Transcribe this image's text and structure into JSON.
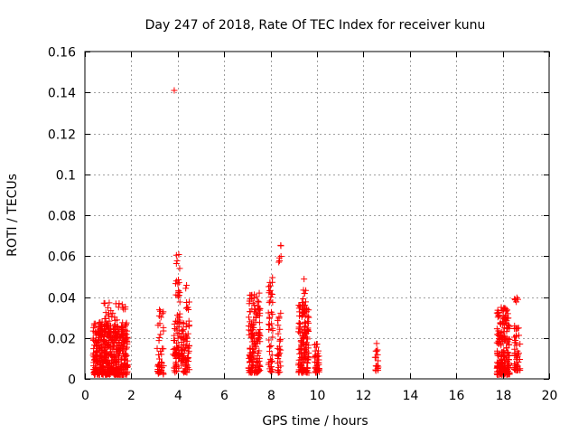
{
  "chart_data": {
    "type": "scatter",
    "title": "Day 247 of 2018, Rate Of TEC Index for receiver kunu",
    "xlabel": "GPS time / hours",
    "ylabel": "ROTI / TECUs",
    "xlim": [
      0,
      20
    ],
    "ylim": [
      0,
      0.16
    ],
    "grid": true,
    "marker": "+",
    "color": "#ff0000",
    "x_ticks": [
      0,
      2,
      4,
      6,
      8,
      10,
      12,
      14,
      16,
      18,
      20
    ],
    "x_tick_labels": [
      "0",
      "2",
      "4",
      "6",
      "8",
      "10",
      "12",
      "14",
      "16",
      "18",
      "20"
    ],
    "y_ticks": [
      0,
      0.02,
      0.04,
      0.06,
      0.08,
      0.1,
      0.12,
      0.14,
      0.16
    ],
    "y_tick_labels": [
      "0",
      "0.02",
      "0.04",
      "0.06",
      "0.08",
      "0.1",
      "0.12",
      "0.14",
      "0.16"
    ],
    "clusters": [
      {
        "x_range": [
          0.35,
          1.85
        ],
        "y_range": [
          0.002,
          0.027
        ],
        "count": 460
      },
      {
        "x_range": [
          0.6,
          1.8
        ],
        "y_range": [
          0.02,
          0.038
        ],
        "count": 70
      },
      {
        "x_range": [
          3.1,
          3.4
        ],
        "y_range": [
          0.002,
          0.034
        ],
        "count": 45
      },
      {
        "x_range": [
          3.8,
          4.5
        ],
        "y_range": [
          0.003,
          0.03
        ],
        "count": 130
      },
      {
        "x_range": [
          3.9,
          4.1
        ],
        "y_range": [
          0.03,
          0.061
        ],
        "count": 22
      },
      {
        "x_range": [
          4.3,
          4.5
        ],
        "y_range": [
          0.03,
          0.048
        ],
        "count": 8
      },
      {
        "x_range": [
          7.05,
          7.55
        ],
        "y_range": [
          0.003,
          0.042
        ],
        "count": 150
      },
      {
        "x_range": [
          7.9,
          8.1
        ],
        "y_range": [
          0.003,
          0.05
        ],
        "count": 45
      },
      {
        "x_range": [
          8.3,
          8.45
        ],
        "y_range": [
          0.003,
          0.036
        ],
        "count": 30
      },
      {
        "x_range": [
          8.35,
          8.45
        ],
        "y_range": [
          0.057,
          0.066
        ],
        "count": 6
      },
      {
        "x_range": [
          9.2,
          9.65
        ],
        "y_range": [
          0.003,
          0.036
        ],
        "count": 150
      },
      {
        "x_range": [
          9.35,
          9.55
        ],
        "y_range": [
          0.036,
          0.05
        ],
        "count": 10
      },
      {
        "x_range": [
          9.9,
          10.1
        ],
        "y_range": [
          0.003,
          0.017
        ],
        "count": 40
      },
      {
        "x_range": [
          12.5,
          12.65
        ],
        "y_range": [
          0.004,
          0.019
        ],
        "count": 16
      },
      {
        "x_range": [
          17.75,
          18.3
        ],
        "y_range": [
          0.002,
          0.035
        ],
        "count": 200
      },
      {
        "x_range": [
          18.5,
          18.75
        ],
        "y_range": [
          0.004,
          0.026
        ],
        "count": 50
      },
      {
        "x_range": [
          18.5,
          18.75
        ],
        "y_range": [
          0.037,
          0.04
        ],
        "count": 5
      }
    ],
    "outliers": [
      {
        "x": 3.85,
        "y": 0.141
      }
    ]
  }
}
